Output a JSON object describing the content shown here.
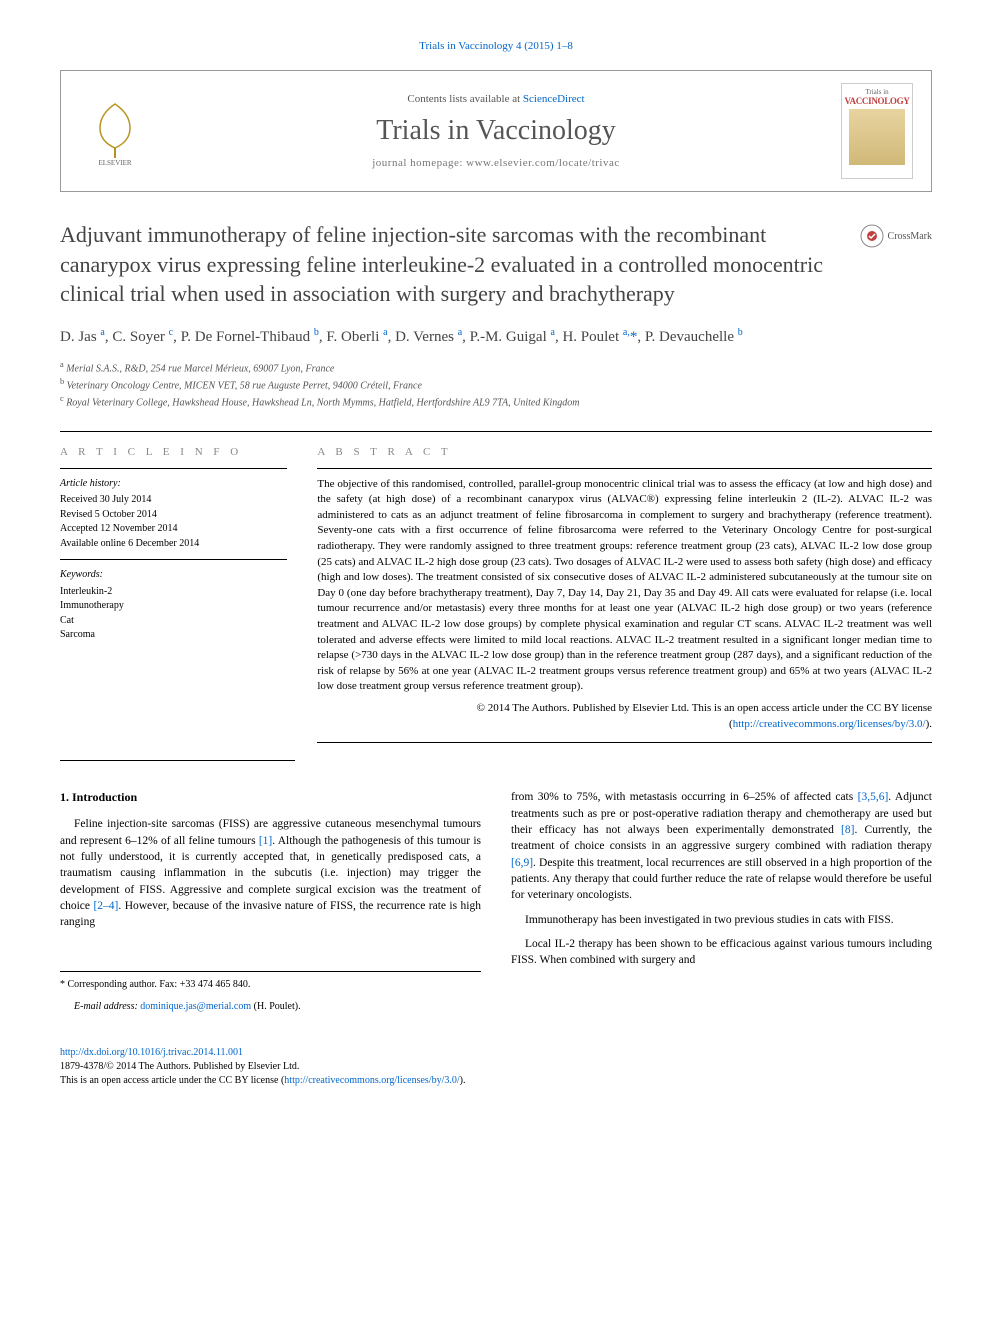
{
  "header_cite": "Trials in Vaccinology 4 (2015) 1–8",
  "masthead": {
    "contents_prefix": "Contents lists available at ",
    "contents_link": "ScienceDirect",
    "journal": "Trials in Vaccinology",
    "homepage": "journal homepage: www.elsevier.com/locate/trivac",
    "cover_line1": "Trials in",
    "cover_line2": "VACCINOLOGY"
  },
  "title": "Adjuvant immunotherapy of feline injection-site sarcomas with the recombinant canarypox virus expressing feline interleukine-2 evaluated in a controlled monocentric clinical trial when used in association with surgery and brachytherapy",
  "crossmark": "CrossMark",
  "authors_html": "D. Jas <sup>a</sup>, C. Soyer <sup>c</sup>, P. De Fornel-Thibaud <sup>b</sup>, F. Oberli <sup>a</sup>, D. Vernes <sup>a</sup>, P.-M. Guigal <sup>a</sup>, H. Poulet <sup>a,</sup><span class='star'>*</span>, P. Devauchelle <sup>b</sup>",
  "affiliations": [
    "a Merial S.A.S., R&D, 254 rue Marcel Mérieux, 69007 Lyon, France",
    "b Veterinary Oncology Centre, MICEN VET, 58 rue Auguste Perret, 94000 Créteil, France",
    "c Royal Veterinary College, Hawkshead House, Hawkshead Ln, North Mymms, Hatfield, Hertfordshire AL9 7TA, United Kingdom"
  ],
  "article_info": {
    "heading": "A R T I C L E   I N F O",
    "history_label": "Article history:",
    "history": [
      "Received 30 July 2014",
      "Revised 5 October 2014",
      "Accepted 12 November 2014",
      "Available online 6 December 2014"
    ],
    "keywords_label": "Keywords:",
    "keywords": [
      "Interleukin-2",
      "Immunotherapy",
      "Cat",
      "Sarcoma"
    ]
  },
  "abstract": {
    "heading": "A B S T R A C T",
    "body": "The objective of this randomised, controlled, parallel-group monocentric clinical trial was to assess the efficacy (at low and high dose) and the safety (at high dose) of a recombinant canarypox virus (ALVAC®) expressing feline interleukin 2 (IL-2). ALVAC IL-2 was administered to cats as an adjunct treatment of feline fibrosarcoma in complement to surgery and brachytherapy (reference treatment). Seventy-one cats with a first occurrence of feline fibrosarcoma were referred to the Veterinary Oncology Centre for post-surgical radiotherapy. They were randomly assigned to three treatment groups: reference treatment group (23 cats), ALVAC IL-2 low dose group (25 cats) and ALVAC IL-2 high dose group (23 cats). Two dosages of ALVAC IL-2 were used to assess both safety (high dose) and efficacy (high and low doses). The treatment consisted of six consecutive doses of ALVAC IL-2 administered subcutaneously at the tumour site on Day 0 (one day before brachytherapy treatment), Day 7, Day 14, Day 21, Day 35 and Day 49. All cats were evaluated for relapse (i.e. local tumour recurrence and/or metastasis) every three months for at least one year (ALVAC IL-2 high dose group) or two years (reference treatment and ALVAC IL-2 low dose groups) by complete physical examination and regular CT scans. ALVAC IL-2 treatment was well tolerated and adverse effects were limited to mild local reactions. ALVAC IL-2 treatment resulted in a significant longer median time to relapse (>730 days in the ALVAC IL-2 low dose group) than in the reference treatment group (287 days), and a significant reduction of the risk of relapse by 56% at one year (ALVAC IL-2 treatment groups versus reference treatment group) and 65% at two years (ALVAC IL-2 low dose treatment group versus reference treatment group).",
    "copyright": "© 2014 The Authors. Published by Elsevier Ltd. This is an open access article under the CC BY license (",
    "cc_link": "http://creativecommons.org/licenses/by/3.0/",
    "copyright_close": ")."
  },
  "intro": {
    "heading": "1. Introduction",
    "p1_a": "Feline injection-site sarcomas (FISS) are aggressive cutaneous mesenchymal tumours and represent 6–12% of all feline tumours ",
    "p1_ref1": "[1]",
    "p1_b": ". Although the pathogenesis of this tumour is not fully understood, it is currently accepted that, in genetically predisposed cats, a traumatism causing inflammation in the subcutis (i.e. injection) may trigger the development of FISS. Aggressive and complete surgical excision was the treatment of choice ",
    "p1_ref2": "[2–4]",
    "p1_c": ". However, because of the invasive nature of FISS, the recurrence rate is high ranging",
    "p2_a": "from 30% to 75%, with metastasis occurring in 6–25% of affected cats ",
    "p2_ref1": "[3,5,6]",
    "p2_b": ". Adjunct treatments such as pre or post-operative radiation therapy and chemotherapy are used but their efficacy has not always been experimentally demonstrated ",
    "p2_ref2": "[8]",
    "p2_c": ". Currently, the treatment of choice consists in an aggressive surgery combined with radiation therapy ",
    "p2_ref3": "[6,9]",
    "p2_d": ". Despite this treatment, local recurrences are still observed in a high proportion of the patients. Any therapy that could further reduce the rate of relapse would therefore be useful for veterinary oncologists.",
    "p3": "Immunotherapy has been investigated in two previous studies in cats with FISS.",
    "p4": "Local IL-2 therapy has been shown to be efficacious against various tumours including FISS. When combined with surgery and"
  },
  "corresponding": {
    "label": "Corresponding author. Fax: +33 474 465 840.",
    "email_label": "E-mail address:",
    "email": "dominique.jas@merial.com",
    "name": "(H. Poulet)."
  },
  "footer": {
    "doi": "http://dx.doi.org/10.1016/j.trivac.2014.11.001",
    "issn_line": "1879-4378/© 2014 The Authors. Published by Elsevier Ltd.",
    "oa_line": "This is an open access article under the CC BY license (",
    "cc_link": "http://creativecommons.org/licenses/by/3.0/",
    "close": ")."
  },
  "colors": {
    "link": "#0066cc",
    "text": "#000000",
    "muted": "#555555",
    "heading_gray": "#888888",
    "journal_gray": "#555555"
  }
}
